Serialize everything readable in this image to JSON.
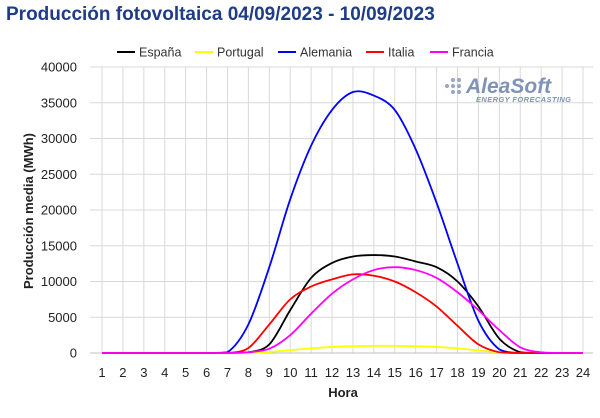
{
  "title": "Producción fotovoltaica 04/09/2023 - 10/09/2023",
  "watermark": {
    "name": "AleaSoft",
    "tagline": "ENERGY FORECASTING"
  },
  "chart_data": {
    "type": "line",
    "title": "Producción fotovoltaica 04/09/2023 - 10/09/2023",
    "xlabel": "Hora",
    "ylabel": "Producción media (MWh)",
    "x": [
      1,
      2,
      3,
      4,
      5,
      6,
      7,
      8,
      9,
      10,
      11,
      12,
      13,
      14,
      15,
      16,
      17,
      18,
      19,
      20,
      21,
      22,
      23,
      24
    ],
    "xlim": [
      1,
      24
    ],
    "ylim": [
      0,
      40000
    ],
    "yticks": [
      0,
      5000,
      10000,
      15000,
      20000,
      25000,
      30000,
      35000,
      40000
    ],
    "grid": true,
    "legend_position": "top",
    "series": [
      {
        "name": "España",
        "color": "#000000",
        "values": [
          0,
          0,
          0,
          0,
          0,
          0,
          0,
          100,
          1200,
          6000,
          10500,
          12600,
          13500,
          13700,
          13500,
          12800,
          12000,
          10000,
          6500,
          2000,
          100,
          0,
          0,
          0
        ]
      },
      {
        "name": "Portugal",
        "color": "#ffff00",
        "values": [
          0,
          0,
          0,
          0,
          0,
          0,
          0,
          20,
          150,
          400,
          650,
          850,
          950,
          1000,
          1000,
          950,
          850,
          650,
          350,
          100,
          0,
          0,
          0,
          0
        ]
      },
      {
        "name": "Alemania",
        "color": "#0000ff",
        "values": [
          0,
          0,
          0,
          0,
          0,
          0,
          100,
          4000,
          12000,
          21500,
          29000,
          34000,
          36500,
          36000,
          34000,
          28500,
          21000,
          12500,
          4500,
          500,
          0,
          0,
          0,
          0
        ]
      },
      {
        "name": "Italia",
        "color": "#ff0000",
        "values": [
          0,
          0,
          0,
          0,
          0,
          0,
          0,
          700,
          4000,
          7500,
          9300,
          10300,
          11000,
          10800,
          10000,
          8500,
          6500,
          3800,
          1200,
          100,
          0,
          0,
          0,
          0
        ]
      },
      {
        "name": "Francia",
        "color": "#ff00ff",
        "values": [
          0,
          0,
          0,
          0,
          0,
          0,
          0,
          100,
          600,
          2500,
          5500,
          8300,
          10300,
          11600,
          12000,
          11600,
          10500,
          8500,
          6000,
          3200,
          800,
          100,
          0,
          0
        ]
      }
    ]
  }
}
